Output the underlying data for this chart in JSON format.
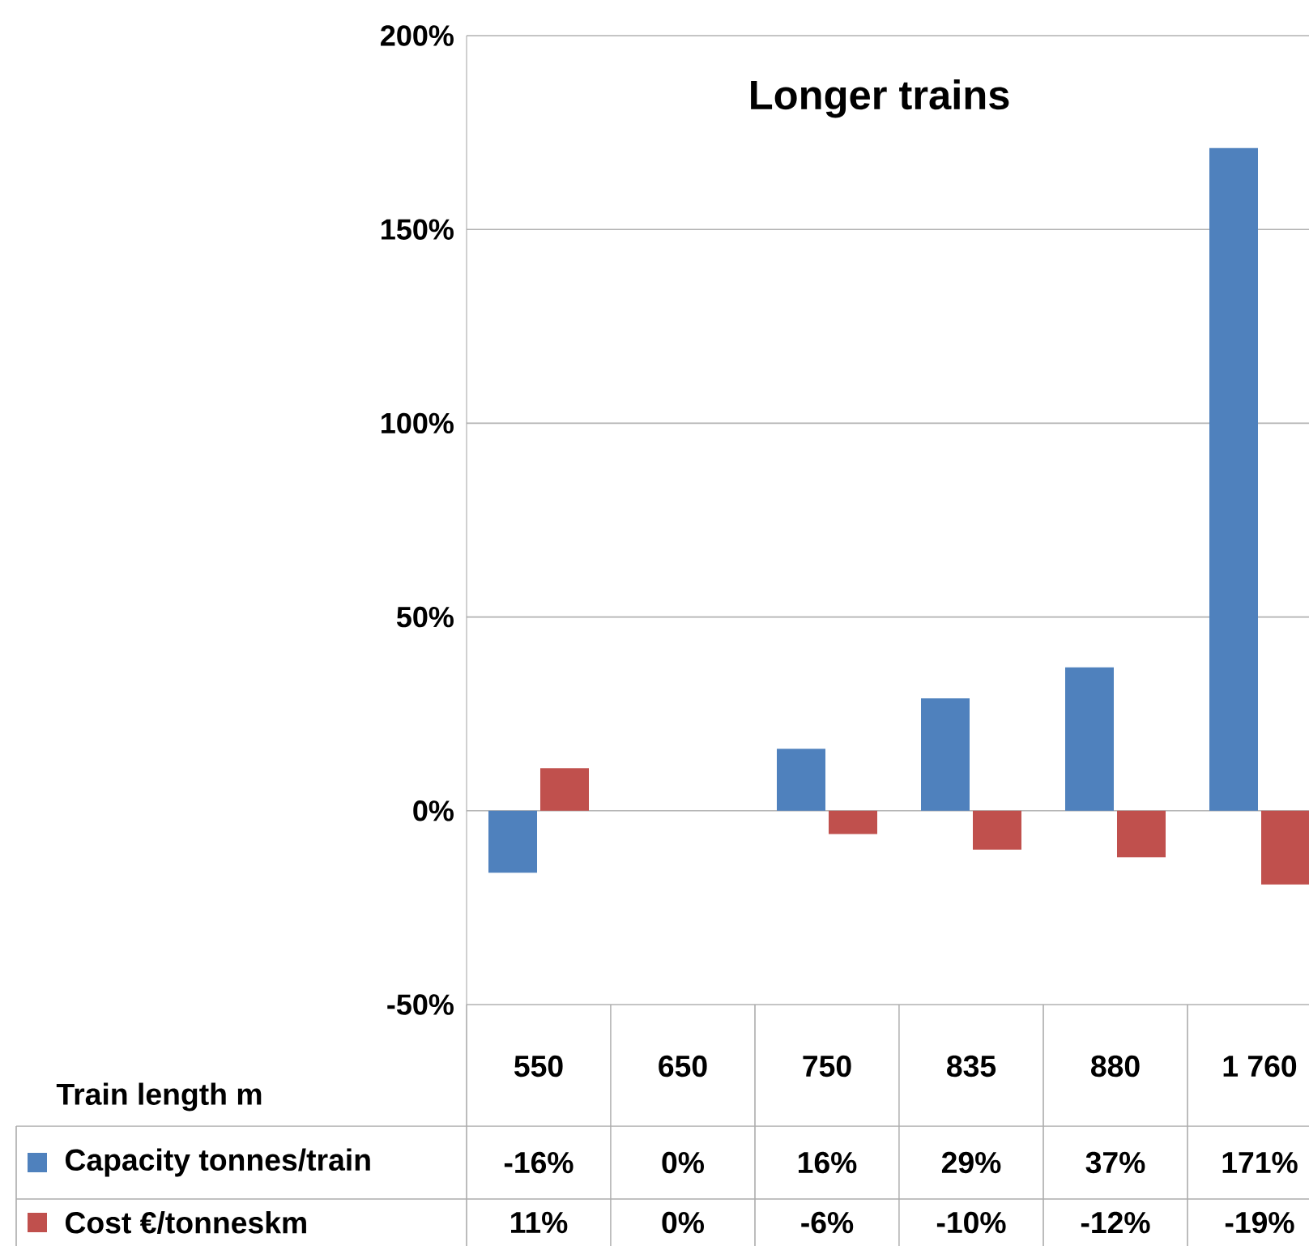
{
  "chart_data": {
    "type": "bar",
    "title": "Longer trains",
    "xlabel": "Train length m",
    "categories": [
      "550",
      "650",
      "750",
      "835",
      "880",
      "1 760"
    ],
    "series": [
      {
        "name": "Capacity tonnes/train",
        "color": "#4f81bd",
        "values": [
          -16,
          0,
          16,
          29,
          37,
          171
        ],
        "value_labels": [
          "-16%",
          "0%",
          "16%",
          "29%",
          "37%",
          "171%"
        ]
      },
      {
        "name": "Cost €/tonneskm",
        "color": "#c0504d",
        "values": [
          11,
          0,
          -6,
          -10,
          -12,
          -19
        ],
        "value_labels": [
          "11%",
          "0%",
          "-6%",
          "-10%",
          "-12%",
          "-19%"
        ]
      }
    ],
    "ylim": [
      -50,
      200
    ],
    "yticks": [
      {
        "value": -50,
        "label": "-50%"
      },
      {
        "value": 0,
        "label": "0%"
      },
      {
        "value": 50,
        "label": "50%"
      },
      {
        "value": 100,
        "label": "100%"
      },
      {
        "value": 150,
        "label": "150%"
      },
      {
        "value": 200,
        "label": "200%"
      }
    ],
    "grid": "y",
    "legend": "bottom"
  }
}
